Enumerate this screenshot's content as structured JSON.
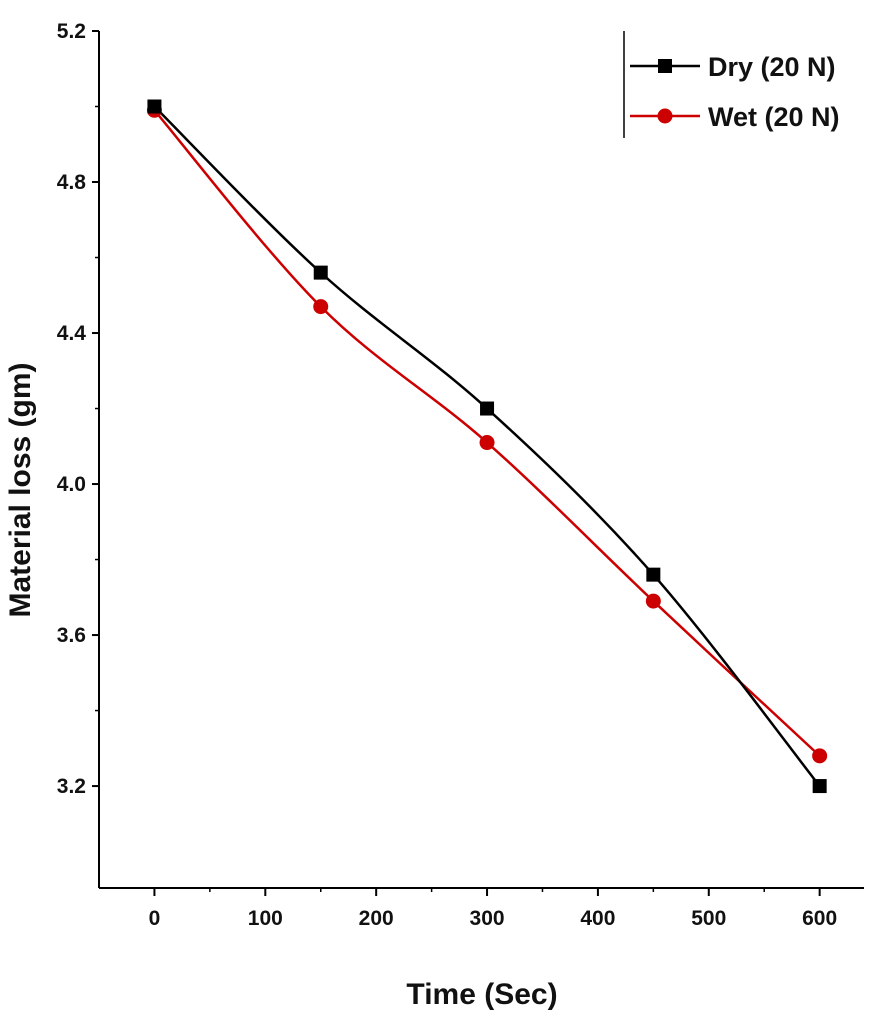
{
  "chart_data": {
    "type": "line",
    "xlabel": "Time (Sec)",
    "ylabel": "Material loss (gm)",
    "xlim": [
      -50,
      640
    ],
    "ylim": [
      2.93,
      5.2
    ],
    "xticks": [
      0,
      100,
      200,
      300,
      400,
      500,
      600
    ],
    "yticks": [
      3.2,
      3.6,
      4.0,
      4.4,
      4.8,
      5.2
    ],
    "x": [
      0,
      150,
      300,
      450,
      600
    ],
    "legend_position": "top-right",
    "grid": false,
    "series": [
      {
        "name": "Dry (20 N)",
        "values": [
          5.0,
          4.56,
          4.2,
          3.76,
          3.2
        ],
        "color": "#000000",
        "marker": "square"
      },
      {
        "name": "Wet (20 N)",
        "values": [
          4.99,
          4.47,
          4.11,
          3.69,
          3.28
        ],
        "color": "#cc0000",
        "marker": "circle"
      }
    ]
  }
}
